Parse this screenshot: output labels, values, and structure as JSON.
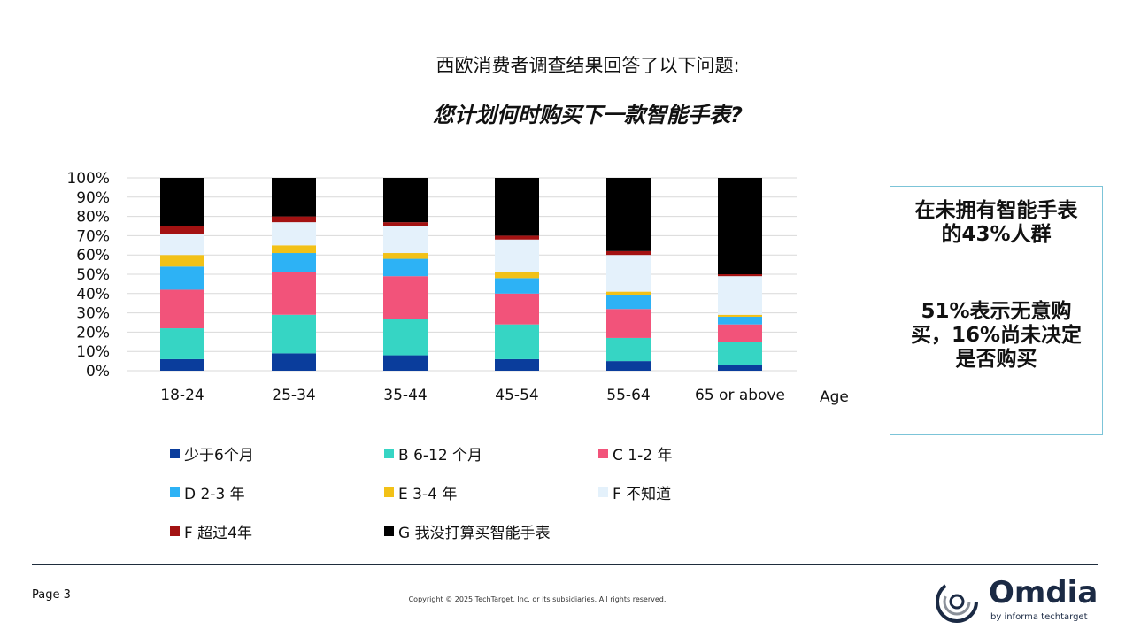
{
  "header": {
    "title": "西欧消费者调查结果回答了以下问题:",
    "subtitle": "您计划何时购买下一款智能手表?"
  },
  "chart_data": {
    "type": "bar",
    "stacked": true,
    "percent": true,
    "categories": [
      "18-24",
      "25-34",
      "35-44",
      "45-54",
      "55-64",
      "65 or above"
    ],
    "xlabel": "Age",
    "ylabel": "",
    "ylim": [
      0,
      100
    ],
    "yticks": [
      "0%",
      "10%",
      "20%",
      "30%",
      "40%",
      "50%",
      "60%",
      "70%",
      "80%",
      "90%",
      "100%"
    ],
    "grid": true,
    "legend_position": "bottom",
    "series": [
      {
        "name": "少于6个月",
        "color": "#0a3d9c",
        "values": [
          6,
          9,
          8,
          6,
          5,
          3
        ]
      },
      {
        "name": "B 6-12 个月",
        "color": "#36d5c4",
        "values": [
          16,
          20,
          19,
          18,
          12,
          12
        ]
      },
      {
        "name": "C 1-2 年",
        "color": "#f2537a",
        "values": [
          20,
          22,
          22,
          16,
          15,
          9
        ]
      },
      {
        "name": "D 2-3 年",
        "color": "#2db2f5",
        "values": [
          12,
          10,
          9,
          8,
          7,
          4
        ]
      },
      {
        "name": "E 3-4 年",
        "color": "#f2c117",
        "values": [
          6,
          4,
          3,
          3,
          2,
          1
        ]
      },
      {
        "name": "F 不知道",
        "color": "#e4f1fb",
        "values": [
          11,
          12,
          14,
          17,
          19,
          20
        ]
      },
      {
        "name": "F 超过4年",
        "color": "#a31212",
        "values": [
          4,
          3,
          2,
          2,
          2,
          1
        ]
      },
      {
        "name": "G 我没打算买智能手表",
        "color": "#000000",
        "values": [
          25,
          20,
          23,
          30,
          38,
          50
        ]
      }
    ]
  },
  "callout": {
    "line1": "在未拥有智能手表的43%人群",
    "line2": "51%表示无意购买，16%尚未决定是否购买",
    "border_color": "#7cc4d8"
  },
  "footer": {
    "page": "Page 3",
    "copyright": "Copyright © 2025 TechTarget, Inc. or its subsidiaries. All rights reserved.",
    "logo_text": "Omdia",
    "logo_sub": "by informa techtarget"
  }
}
